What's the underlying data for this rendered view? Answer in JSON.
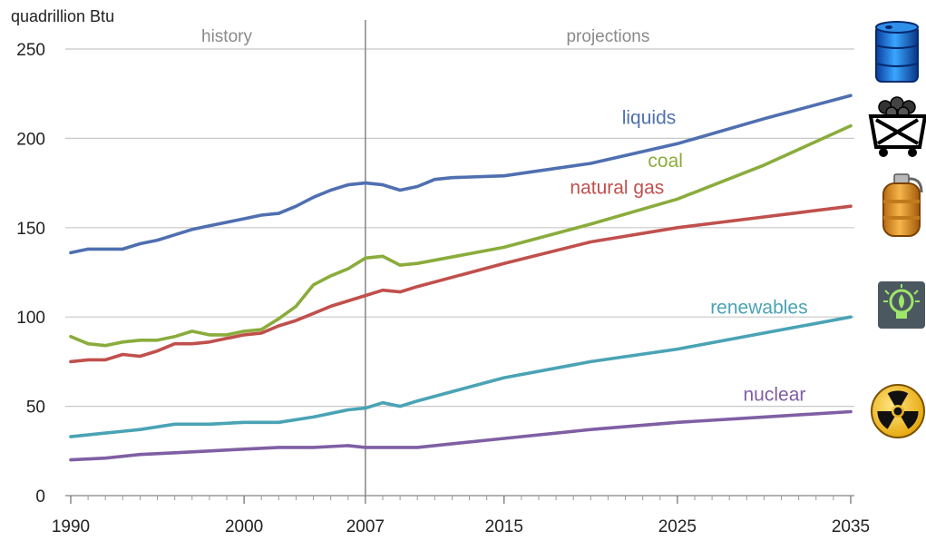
{
  "chart_data": {
    "type": "line",
    "ylabel": "quadrillion Btu",
    "ylim": [
      0,
      250
    ],
    "yticks": [
      0,
      50,
      100,
      150,
      200,
      250
    ],
    "xlim": [
      1990,
      2035
    ],
    "xticks": [
      1990,
      2000,
      2007,
      2015,
      2025,
      2035
    ],
    "grid": true,
    "divider_year": 2007,
    "periods": [
      {
        "label": "history",
        "x": 1999
      },
      {
        "label": "projections",
        "x": 2021
      }
    ],
    "series": [
      {
        "name": "liquids",
        "color": "#4f6fb0",
        "label_x": 2021.8,
        "label_y": 208,
        "icon": "oil-barrel-icon",
        "x": [
          1990,
          1991,
          1993,
          1994,
          1995,
          1996,
          1997,
          1998,
          1999,
          2000,
          2001,
          2002,
          2003,
          2004,
          2005,
          2006,
          2007,
          2008,
          2009,
          2010,
          2011,
          2012,
          2015,
          2020,
          2025,
          2030,
          2035
        ],
        "y": [
          136,
          138,
          138,
          141,
          143,
          146,
          149,
          151,
          153,
          155,
          157,
          158,
          162,
          167,
          171,
          174,
          175,
          174,
          171,
          173,
          177,
          178,
          179,
          186,
          197,
          211,
          224
        ]
      },
      {
        "name": "coal",
        "color": "#8aac3c",
        "label_x": 2023.3,
        "label_y": 184,
        "icon": "coal-cart-icon",
        "x": [
          1990,
          1991,
          1992,
          1993,
          1994,
          1995,
          1996,
          1997,
          1998,
          1999,
          2000,
          2001,
          2002,
          2003,
          2004,
          2005,
          2006,
          2007,
          2008,
          2009,
          2010,
          2015,
          2020,
          2025,
          2030,
          2035
        ],
        "y": [
          89,
          85,
          84,
          86,
          87,
          87,
          89,
          92,
          90,
          90,
          92,
          93,
          99,
          106,
          118,
          123,
          127,
          133,
          134,
          129,
          130,
          139,
          152,
          166,
          185,
          207
        ]
      },
      {
        "name": "natural gas",
        "color": "#c0504d",
        "label_x": 2018.8,
        "label_y": 169,
        "icon": "gas-cylinder-icon",
        "x": [
          1990,
          1991,
          1992,
          1993,
          1994,
          1995,
          1996,
          1997,
          1998,
          1999,
          2000,
          2001,
          2002,
          2003,
          2004,
          2005,
          2006,
          2007,
          2008,
          2009,
          2010,
          2015,
          2020,
          2025,
          2030,
          2035
        ],
        "y": [
          75,
          76,
          76,
          79,
          78,
          81,
          85,
          85,
          86,
          88,
          90,
          91,
          95,
          98,
          102,
          106,
          109,
          112,
          115,
          114,
          117,
          130,
          142,
          150,
          156,
          162
        ]
      },
      {
        "name": "renewables",
        "color": "#4aa3b5",
        "label_x": 2026.9,
        "label_y": 102,
        "icon": "light-bulb-icon",
        "x": [
          1990,
          1992,
          1994,
          1996,
          1998,
          2000,
          2002,
          2004,
          2006,
          2007,
          2008,
          2009,
          2010,
          2015,
          2020,
          2025,
          2030,
          2035
        ],
        "y": [
          33,
          35,
          37,
          40,
          40,
          41,
          41,
          44,
          48,
          49,
          52,
          50,
          53,
          66,
          75,
          82,
          91,
          100
        ]
      },
      {
        "name": "nuclear",
        "color": "#7f5fa4",
        "label_x": 2028.8,
        "label_y": 53,
        "icon": "radiation-icon",
        "x": [
          1990,
          1992,
          1994,
          1996,
          1998,
          2000,
          2002,
          2004,
          2006,
          2007,
          2008,
          2010,
          2015,
          2020,
          2025,
          2030,
          2035
        ],
        "y": [
          20,
          21,
          23,
          24,
          25,
          26,
          27,
          27,
          28,
          27,
          27,
          27,
          32,
          37,
          41,
          44,
          47
        ]
      }
    ]
  }
}
